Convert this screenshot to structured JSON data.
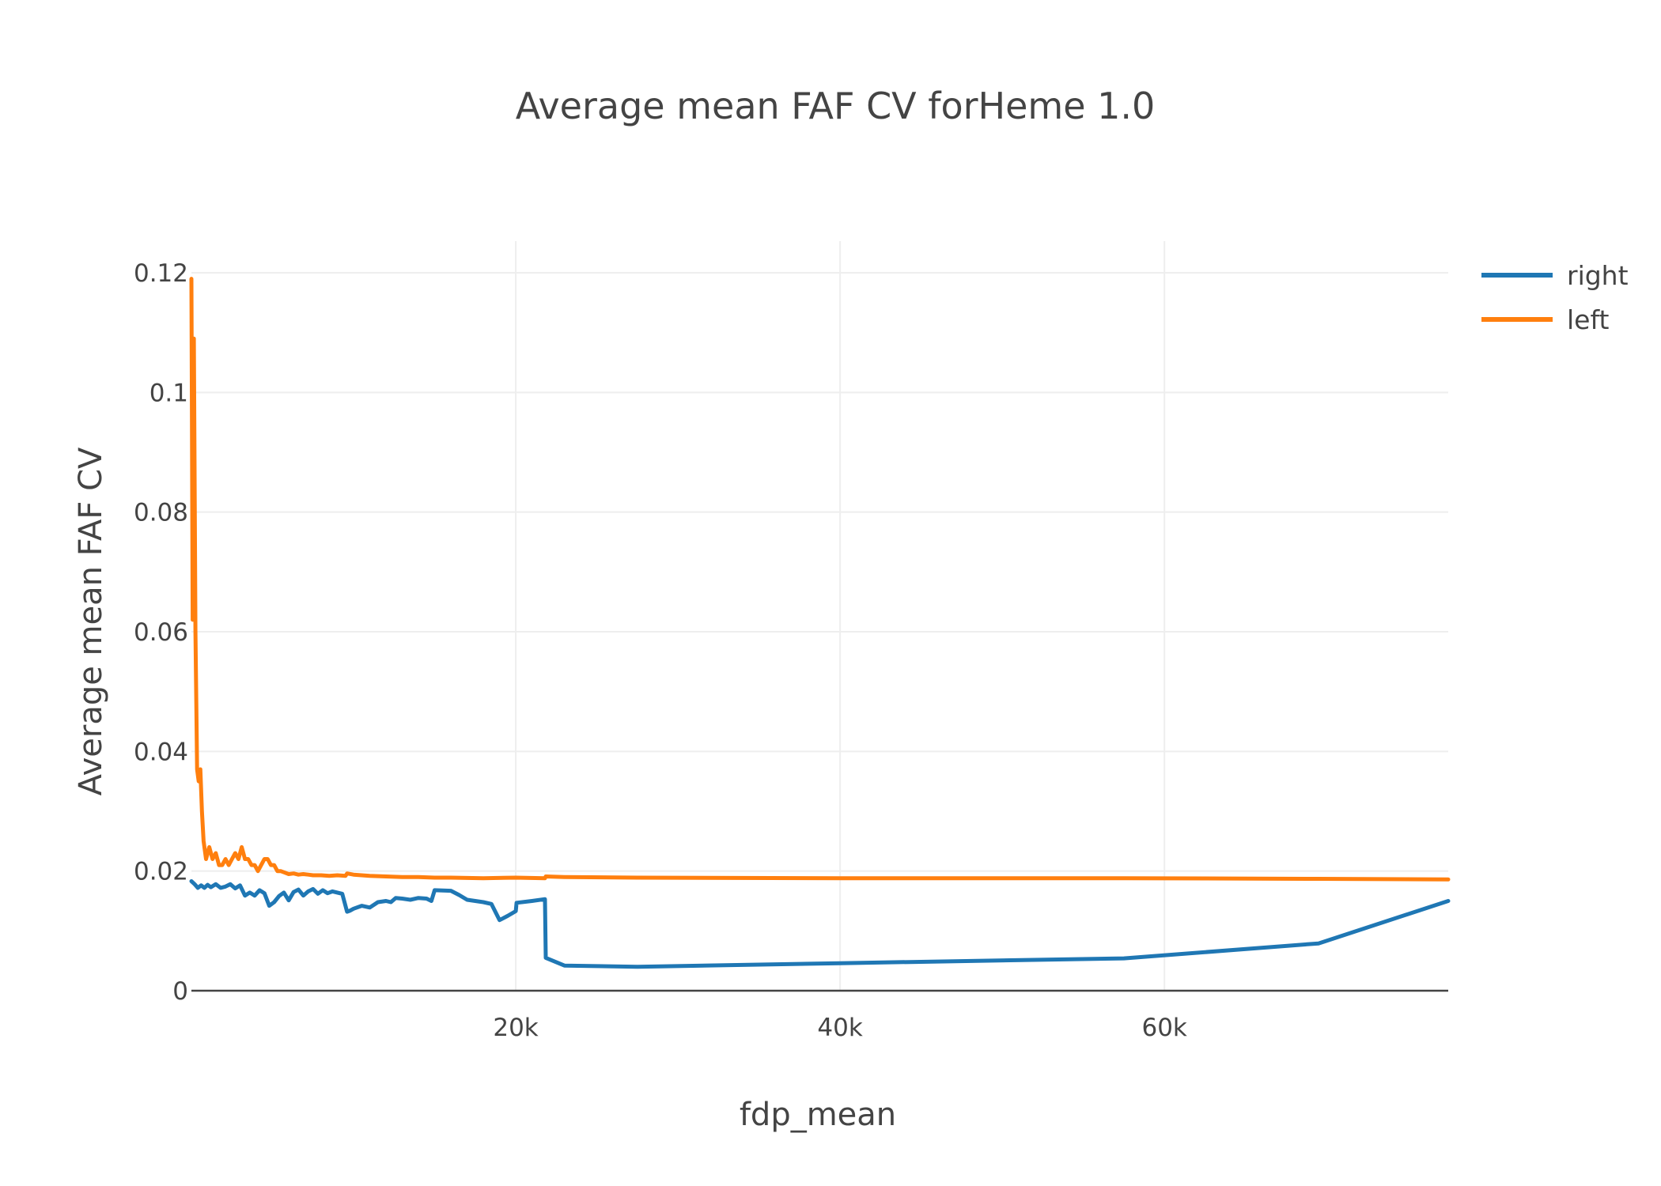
{
  "chart_data": {
    "type": "line",
    "title": "Average mean FAF CV forHeme 1.0",
    "xlabel": "fdp_mean",
    "ylabel": "Average mean FAF CV",
    "xlim": [
      0,
      77500
    ],
    "ylim": [
      0,
      0.12
    ],
    "x_ticks": [
      20000,
      40000,
      60000
    ],
    "x_tick_labels": [
      "20k",
      "40k",
      "60k"
    ],
    "y_ticks": [
      0,
      0.02,
      0.04,
      0.06,
      0.08,
      0.1,
      0.12
    ],
    "y_tick_labels": [
      "0",
      "0.02",
      "0.04",
      "0.06",
      "0.08",
      "0.1",
      "0.12"
    ],
    "grid": true,
    "legend_position": "top-right",
    "series": [
      {
        "name": "right",
        "color": "#1f77b4",
        "x": [
          0,
          200,
          400,
          600,
          800,
          1000,
          1200,
          1500,
          1800,
          2100,
          2400,
          2700,
          3000,
          3300,
          3600,
          3900,
          4200,
          4500,
          4800,
          5100,
          5400,
          5700,
          6000,
          6300,
          6600,
          6900,
          7200,
          7500,
          7800,
          8100,
          8400,
          8700,
          9000,
          9300,
          9600,
          9800,
          10000,
          10500,
          11000,
          11500,
          12000,
          12300,
          12600,
          13000,
          13500,
          14000,
          14500,
          14800,
          15000,
          16000,
          16500,
          17000,
          18000,
          18500,
          19000,
          19500,
          20000,
          20050,
          21000,
          21800,
          21850,
          23000,
          27500,
          40000,
          57500,
          69500,
          77500
        ],
        "y": [
          0.0183,
          0.0178,
          0.0172,
          0.0176,
          0.0172,
          0.0177,
          0.0173,
          0.0178,
          0.0172,
          0.0174,
          0.0178,
          0.0171,
          0.0176,
          0.0159,
          0.0164,
          0.0159,
          0.0168,
          0.0163,
          0.0142,
          0.0148,
          0.0158,
          0.0164,
          0.0151,
          0.0165,
          0.0169,
          0.0159,
          0.0166,
          0.017,
          0.0162,
          0.0168,
          0.0163,
          0.0166,
          0.0164,
          0.0162,
          0.0132,
          0.0134,
          0.0137,
          0.0142,
          0.0139,
          0.0148,
          0.015,
          0.0148,
          0.0155,
          0.0154,
          0.0152,
          0.0155,
          0.0154,
          0.015,
          0.0168,
          0.0167,
          0.016,
          0.0152,
          0.0148,
          0.0145,
          0.0118,
          0.0125,
          0.0133,
          0.0147,
          0.015,
          0.0153,
          0.0055,
          0.0042,
          0.004,
          0.0046,
          0.0054,
          0.0079,
          0.015
        ]
      },
      {
        "name": "left",
        "color": "#ff7f0e",
        "x": [
          0,
          80,
          150,
          250,
          350,
          450,
          550,
          650,
          750,
          900,
          1100,
          1300,
          1500,
          1700,
          1900,
          2100,
          2300,
          2500,
          2700,
          2900,
          3100,
          3300,
          3500,
          3700,
          3900,
          4100,
          4300,
          4500,
          4700,
          4900,
          5100,
          5300,
          5500,
          5700,
          6000,
          6300,
          6600,
          6900,
          7200,
          7500,
          8000,
          8500,
          9000,
          9500,
          9600,
          10000,
          11000,
          12000,
          13000,
          14000,
          15000,
          16000,
          18000,
          20000,
          21800,
          21850,
          23000,
          27500,
          40000,
          57500,
          69500,
          77500
        ],
        "y": [
          0.119,
          0.062,
          0.109,
          0.06,
          0.037,
          0.035,
          0.037,
          0.03,
          0.025,
          0.022,
          0.024,
          0.022,
          0.023,
          0.021,
          0.021,
          0.022,
          0.021,
          0.022,
          0.023,
          0.022,
          0.024,
          0.022,
          0.022,
          0.021,
          0.021,
          0.02,
          0.021,
          0.022,
          0.022,
          0.021,
          0.021,
          0.02,
          0.02,
          0.0198,
          0.0195,
          0.0196,
          0.0194,
          0.0195,
          0.0194,
          0.0193,
          0.0193,
          0.0192,
          0.0193,
          0.0192,
          0.0196,
          0.0194,
          0.0192,
          0.0191,
          0.019,
          0.019,
          0.0189,
          0.0189,
          0.0188,
          0.0189,
          0.0188,
          0.0191,
          0.019,
          0.0189,
          0.0188,
          0.0188,
          0.0187,
          0.0186
        ]
      }
    ]
  }
}
